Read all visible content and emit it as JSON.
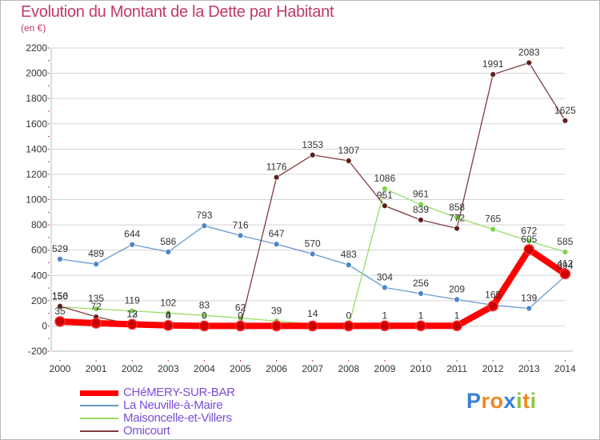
{
  "header": {
    "title": "Evolution du Montant de la Dette par Habitant",
    "subtitle": "(en €)"
  },
  "logo": {
    "text": "Proxiti",
    "letters": [
      "P",
      "r",
      "o",
      "x",
      "i",
      "t",
      "i"
    ],
    "colors": [
      "#3b7fd6",
      "#f0891e",
      "#f0891e",
      "#3b7fd6",
      "#8cc43c",
      "#f0891e",
      "#8cc43c"
    ]
  },
  "colors": {
    "title": "#c0396b",
    "grid": "#d3d3d3",
    "axis_tick_marks": "#c0396b",
    "legend_text": "#7a4dd8"
  },
  "chart_data": {
    "type": "line",
    "title": "Evolution du Montant de la Dette par Habitant",
    "subtitle": "(en €)",
    "xlabel": "",
    "ylabel": "",
    "x": [
      2000,
      2001,
      2002,
      2003,
      2004,
      2005,
      2006,
      2007,
      2008,
      2009,
      2010,
      2011,
      2012,
      2013,
      2014
    ],
    "ylim": [
      -200,
      2200
    ],
    "yticks": [
      -200,
      0,
      200,
      400,
      600,
      800,
      1000,
      1200,
      1400,
      1600,
      1800,
      2000,
      2200
    ],
    "grid": "horizontal",
    "legend_position": "bottom-left",
    "series": [
      {
        "name": "CHéMERY-SUR-BAR",
        "color": "#ff0000",
        "marker_color": "#cc0000",
        "values": [
          35,
          22,
          13,
          4,
          0,
          0,
          0,
          0,
          0,
          1,
          1,
          1,
          158,
          605,
          412
        ],
        "labels": [
          "35",
          "",
          "13",
          "4",
          "",
          "",
          "",
          "",
          "",
          "1",
          "1",
          "1",
          "",
          "605",
          "412"
        ]
      },
      {
        "name": "La Neuville-à-Maire",
        "color": "#6699cc",
        "marker_color": "#4c86c7",
        "values": [
          529,
          489,
          644,
          586,
          793,
          716,
          647,
          570,
          483,
          304,
          256,
          209,
          165,
          139,
          394
        ],
        "labels": [
          "529",
          "489",
          "644",
          "586",
          "793",
          "716",
          "647",
          "570",
          "483",
          "304",
          "256",
          "209",
          "165",
          "139",
          "394"
        ]
      },
      {
        "name": "Maisoncelle-et-Villers",
        "color": "#99dd66",
        "marker_color": "#7ed348",
        "values": [
          150,
          135,
          119,
          102,
          83,
          62,
          39,
          14,
          0,
          1086,
          961,
          858,
          765,
          672,
          585
        ],
        "labels": [
          "150",
          "135",
          "119",
          "102",
          "83",
          "62",
          "39",
          "14",
          "0",
          "1086",
          "961",
          "858",
          "765",
          "672",
          "585"
        ]
      },
      {
        "name": "Omicourt",
        "color": "#7f3d3d",
        "marker_color": "#5f1f1f",
        "values": [
          156,
          72,
          12,
          0,
          0,
          0,
          1176,
          1353,
          1307,
          951,
          839,
          772,
          1991,
          2083,
          1625
        ],
        "labels": [
          "156",
          "72",
          "12",
          "0",
          "0",
          "0",
          "1176",
          "1353",
          "1307",
          "951",
          "839",
          "772",
          "1991",
          "2083",
          "1625"
        ]
      }
    ],
    "legend": [
      "CHéMERY-SUR-BAR",
      "La Neuville-à-Maire",
      "Maisoncelle-et-Villers",
      "Omicourt"
    ]
  }
}
